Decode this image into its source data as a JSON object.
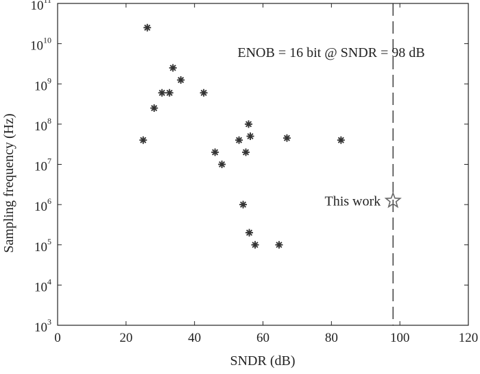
{
  "chart_data": {
    "type": "scatter",
    "xlabel": "SNDR (dB)",
    "ylabel": "Sampling frequency (Hz)",
    "xlim": [
      0,
      120
    ],
    "ylim_log10": [
      3,
      11
    ],
    "y_scale": "log",
    "grid": false,
    "x_ticks": [
      "0",
      "20",
      "40",
      "60",
      "80",
      "100",
      "120"
    ],
    "y_tick_base": "10",
    "y_tick_exponents": [
      "3",
      "4",
      "5",
      "6",
      "7",
      "8",
      "9",
      "10",
      "11"
    ],
    "series": [
      {
        "marker": "asterisk",
        "color": "#333333",
        "points": [
          {
            "x": 26.2,
            "y": 25000000000
          },
          {
            "x": 25.0,
            "y": 40000000
          },
          {
            "x": 28.2,
            "y": 250000000
          },
          {
            "x": 30.5,
            "y": 600000000
          },
          {
            "x": 32.7,
            "y": 600000000
          },
          {
            "x": 33.7,
            "y": 2500000000
          },
          {
            "x": 36.0,
            "y": 1250000000
          },
          {
            "x": 42.7,
            "y": 600000000
          },
          {
            "x": 46.0,
            "y": 20000000
          },
          {
            "x": 48.0,
            "y": 10000000
          },
          {
            "x": 53.0,
            "y": 40000000
          },
          {
            "x": 54.2,
            "y": 1000000
          },
          {
            "x": 55.0,
            "y": 20000000
          },
          {
            "x": 55.8,
            "y": 100000000
          },
          {
            "x": 56.3,
            "y": 50000000
          },
          {
            "x": 56.0,
            "y": 200000
          },
          {
            "x": 57.7,
            "y": 100000
          },
          {
            "x": 64.7,
            "y": 100000
          },
          {
            "x": 67.0,
            "y": 45000000
          },
          {
            "x": 82.8,
            "y": 40000000
          }
        ]
      },
      {
        "marker": "star",
        "color": "#666666",
        "points": [
          {
            "x": 98.0,
            "y": 1250000
          }
        ]
      }
    ],
    "reference_line": {
      "x": 98,
      "style": "dashed"
    },
    "annotations": {
      "enob": "ENOB = 16 bit @ SNDR = 98 dB",
      "this_work": "This work"
    }
  }
}
